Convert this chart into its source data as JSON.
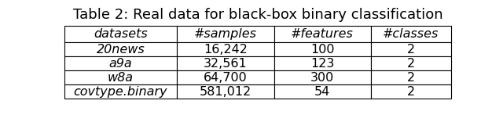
{
  "title": "Table 2: Real data for black-box binary classification",
  "col_headers": [
    "datasets",
    "#samples",
    "#features",
    "#classes"
  ],
  "rows": [
    [
      "20news",
      "16,242",
      "100",
      "2"
    ],
    [
      "a9a",
      "32,561",
      "123",
      "2"
    ],
    [
      "w8a",
      "64,700",
      "300",
      "2"
    ],
    [
      "covtype.binary",
      "581,012",
      "54",
      "2"
    ]
  ],
  "col_aligns": [
    "center",
    "center",
    "center",
    "center"
  ],
  "background_color": "#ffffff",
  "title_fontsize": 13,
  "cell_fontsize": 11.5
}
